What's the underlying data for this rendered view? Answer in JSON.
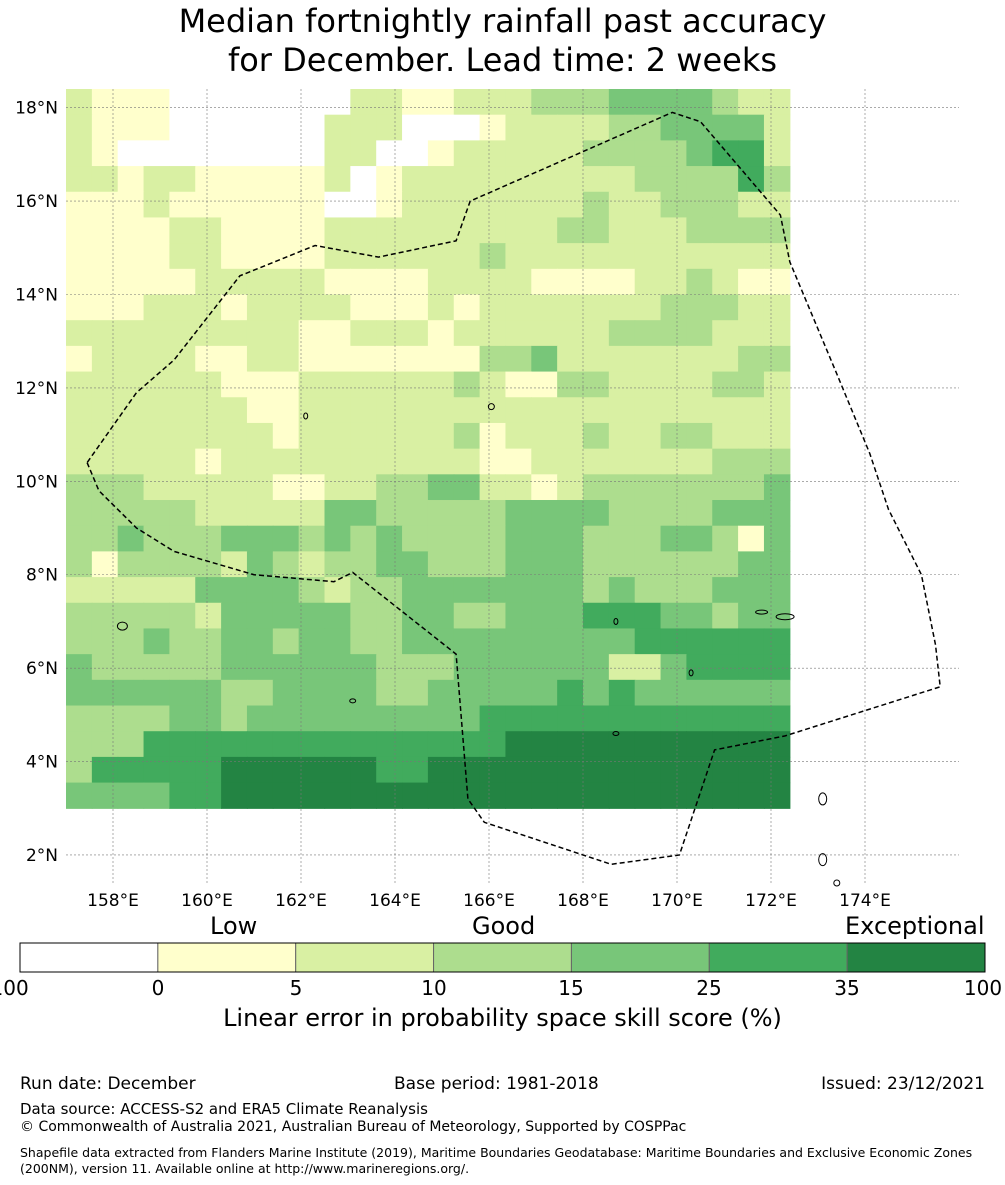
{
  "title": {
    "line1": "Median fortnightly rainfall past accuracy",
    "line2": "for December. Lead time: 2 weeks"
  },
  "map": {
    "lon_range": [
      157.0,
      176.0
    ],
    "lat_range": [
      1.4,
      18.4
    ],
    "x_ticks": [
      158,
      160,
      162,
      164,
      166,
      168,
      170,
      172,
      174
    ],
    "y_ticks": [
      2,
      4,
      6,
      8,
      10,
      12,
      14,
      16,
      18
    ],
    "x_tick_labels": [
      "158°E",
      "160°E",
      "162°E",
      "164°E",
      "166°E",
      "168°E",
      "170°E",
      "172°E",
      "174°E"
    ],
    "y_tick_labels": [
      "2°N",
      "4°N",
      "6°N",
      "8°N",
      "10°N",
      "12°N",
      "14°N",
      "16°N",
      "18°N"
    ],
    "grid": true,
    "eez_boundary": [
      [
        157.45,
        10.4
      ],
      [
        157.7,
        9.8
      ],
      [
        158.5,
        9.0
      ],
      [
        159.3,
        8.5
      ],
      [
        161.0,
        8.0
      ],
      [
        162.7,
        7.85
      ],
      [
        163.1,
        8.05
      ],
      [
        165.3,
        6.3
      ],
      [
        165.55,
        3.2
      ],
      [
        165.9,
        2.7
      ],
      [
        168.6,
        1.8
      ],
      [
        170.05,
        2.0
      ],
      [
        170.8,
        4.25
      ],
      [
        172.3,
        4.55
      ],
      [
        175.6,
        5.6
      ],
      [
        175.5,
        6.5
      ],
      [
        175.2,
        8.0
      ],
      [
        174.5,
        9.4
      ],
      [
        174.1,
        10.6
      ],
      [
        173.4,
        12.3
      ],
      [
        172.4,
        14.7
      ],
      [
        172.2,
        15.7
      ],
      [
        170.5,
        17.7
      ],
      [
        169.9,
        17.9
      ],
      [
        165.6,
        16.0
      ],
      [
        165.3,
        15.15
      ],
      [
        163.65,
        14.8
      ],
      [
        162.3,
        15.05
      ],
      [
        160.7,
        14.4
      ],
      [
        159.3,
        12.6
      ],
      [
        158.5,
        11.9
      ],
      [
        157.45,
        10.4
      ]
    ],
    "grid_cells": {
      "lon_start": 157.0,
      "lat_top": 18.4,
      "cell_size": 0.55,
      "row_count": 28,
      "rows": [
        "2111000000022112223334444322",
        "2111000000222000122223344442",
        "2100000000220012222233334552",
        "2212211111201222222222333353",
        "1112111111001222222232233322",
        "1111221111222222222332223333",
        "1111221111222222322222222222",
        "1111122222111122221111223211",
        "1112221222211121222222233322",
        "2222222221122212222223333222",
        "1222211221111111334222222233",
        "2222221112222223211332222332",
        "2222222112222222222222222222",
        "2222222212222223122232233222",
        "2222212222222222112222222333",
        "3332222211223344221233333334",
        "3333322222443333344443333444",
        "3343334443434333344433344314",
        "3133332432334433344433333344",
        "2222244443233444444434333444",
        "3333324444433443344455544344",
        "3334334434433444444444555555",
        "4333334444443334444442245555",
        "4444443344443344444545444444",
        "3333443444444444555555555555",
        "3335555555555555566666666666",
        "3555556666665566666666666666",
        "4444556666666666666666666666"
      ]
    }
  },
  "colorbar": {
    "category_labels": [
      "Low",
      "Good",
      "Exceptional"
    ],
    "ticks": [
      "-100",
      "0",
      "5",
      "10",
      "15",
      "25",
      "35",
      "100"
    ],
    "colors": [
      "#ffffff",
      "#ffffcc",
      "#d9f0a3",
      "#addd8e",
      "#78c679",
      "#41ab5d",
      "#238443"
    ],
    "title": "Linear error in probability space skill score (%)"
  },
  "footer": {
    "run_date": "Run date: December",
    "base_period": "Base period: 1981-2018",
    "issued": "Issued: 23/12/2021",
    "data_source": "Data source: ACCESS-S2 and ERA5 Climate Reanalysis",
    "copyright": "© Commonwealth of Australia 2021, Australian Bureau of Meteorology, Supported by COSPPac",
    "shapefile_note": "Shapefile data extracted from Flanders Marine Institute (2019), Maritime Boundaries Geodatabase: Maritime Boundaries and Exclusive Economic Zones (200NM), version 11. Available online at http://www.marineregions.org/."
  }
}
